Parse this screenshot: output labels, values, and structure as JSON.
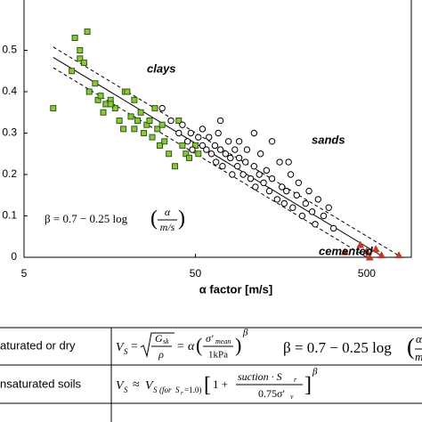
{
  "chart_data": {
    "type": "scatter",
    "xlabel": "α factor [m/s]",
    "log_x": true,
    "xlim": [
      5,
      910
    ],
    "xticks": [
      5,
      50,
      500
    ],
    "ylim": [
      0,
      0.6
    ],
    "yticks": [
      0,
      0.1,
      0.2,
      0.3,
      0.4,
      0.5
    ],
    "series": [
      {
        "name": "clays",
        "color": "#8cc63f",
        "edgecolor": "#2d5a0f",
        "label_color": "#3a9a1a",
        "marker": "square",
        "x": [
          7.4,
          9.9,
          10.6,
          10.6,
          11.7,
          11.2,
          9.5,
          12,
          13.5,
          14,
          15,
          16,
          14.5,
          17,
          18,
          19.4,
          20,
          21,
          22,
          23,
          19,
          24,
          25,
          26,
          28,
          30,
          31,
          32,
          33,
          35,
          27,
          29,
          22,
          40,
          42,
          44,
          46,
          50,
          52,
          38,
          13,
          16
        ],
        "values": [
          0.36,
          0.53,
          0.5,
          0.48,
          0.545,
          0.47,
          0.45,
          0.4,
          0.38,
          0.39,
          0.37,
          0.38,
          0.35,
          0.36,
          0.33,
          0.4,
          0.4,
          0.34,
          0.31,
          0.33,
          0.31,
          0.35,
          0.3,
          0.32,
          0.29,
          0.31,
          0.27,
          0.32,
          0.28,
          0.25,
          0.33,
          0.36,
          0.38,
          0.33,
          0.27,
          0.25,
          0.24,
          0.27,
          0.25,
          0.22,
          0.42,
          0.37
        ]
      },
      {
        "name": "sands",
        "color": "#000000",
        "label_color": "#000000",
        "marker": "circle",
        "x": [
          32,
          36,
          40,
          42,
          45,
          47,
          48,
          52,
          55,
          55,
          58,
          60,
          62,
          65,
          66,
          68,
          70,
          72,
          75,
          78,
          80,
          82,
          85,
          88,
          90,
          95,
          98,
          100,
          105,
          110,
          112,
          118,
          120,
          125,
          130,
          135,
          140,
          150,
          155,
          160,
          165,
          170,
          180,
          185,
          195,
          200,
          210,
          220,
          230,
          240,
          250,
          260,
          280,
          300,
          320,
          140,
          70,
          110,
          175,
          90
        ],
        "values": [
          0.36,
          0.33,
          0.3,
          0.32,
          0.28,
          0.3,
          0.26,
          0.29,
          0.27,
          0.31,
          0.26,
          0.29,
          0.25,
          0.27,
          0.23,
          0.3,
          0.26,
          0.22,
          0.25,
          0.28,
          0.24,
          0.2,
          0.26,
          0.22,
          0.24,
          0.2,
          0.23,
          0.26,
          0.19,
          0.22,
          0.17,
          0.2,
          0.25,
          0.18,
          0.21,
          0.16,
          0.19,
          0.14,
          0.23,
          0.17,
          0.13,
          0.16,
          0.2,
          0.12,
          0.15,
          0.18,
          0.1,
          0.13,
          0.16,
          0.11,
          0.08,
          0.14,
          0.1,
          0.12,
          0.07,
          0.28,
          0.33,
          0.3,
          0.23,
          0.28
        ]
      },
      {
        "name": "cemented",
        "color": "#c0392b",
        "label_color": "#c00000",
        "marker": "triangle",
        "x": [
          372,
          459,
          500,
          520,
          565,
          610,
          770
        ],
        "values": [
          0.013,
          0.03,
          0.015,
          0.0,
          0.02,
          0.005,
          0.005
        ]
      }
    ],
    "lines": [
      {
        "style": "dashed",
        "x": [
          7.4,
          800
        ],
        "values": [
          0.508,
          0
        ]
      },
      {
        "style": "solid",
        "x": [
          7.4,
          631
        ],
        "values": [
          0.483,
          0
        ]
      },
      {
        "style": "dashed",
        "x": [
          7.4,
          500
        ],
        "values": [
          0.458,
          0
        ]
      }
    ],
    "formula": {
      "text": "β = 0.7 − 0.25 log",
      "open": "(",
      "num": "α",
      "den": "m/s",
      "close": ")"
    }
  },
  "table": {
    "rows": [
      {
        "label": "aturated or dry",
        "eq1": {
          "v": "V",
          "v_sub": "S",
          "eq": "=",
          "num": "G",
          "num_sub": "sk",
          "den": "ρ",
          "eq2": "= α",
          "open": "(",
          "num2": "σ′",
          "num2_sub": "mean",
          "den2": "1kPa",
          "close": ")",
          "exp": "β"
        },
        "eq2": {
          "text": "β = 0.7 − 0.25 log",
          "open": "(",
          "num": "α",
          "den": "m/"
        }
      },
      {
        "label": "nsaturated soils",
        "eq": {
          "v": "V",
          "v_sub": "S",
          "approx": "≈",
          "v2": "V",
          "v2_sub": "S",
          "for": "(for",
          "s": "S",
          "s_sub": "r",
          "cond": "=1.0)",
          "open": "[",
          "one": "1 +",
          "num": "suction · S",
          "num_sub": "r",
          "den": "0.75σ′",
          "den_sub": "v",
          "close": "]",
          "exp": "β"
        }
      }
    ]
  }
}
